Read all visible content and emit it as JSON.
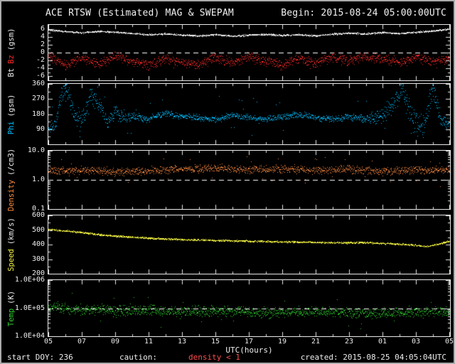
{
  "footer": {
    "start": "start DOY: 236",
    "caution_label": "caution:",
    "caution_value": "density < 1",
    "caution_color": "#ff4d4d",
    "created": "created: 2015-08-25 04:05:04UTC"
  },
  "chart_data": {
    "type": "scatter",
    "title": "ACE RTSW (Estimated) MAG & SWEPAM",
    "begin_label": "Begin: 2015-08-24 05:00:00UTC",
    "colors": {
      "axis": "#e9e9e9",
      "dashed": "#ffffff",
      "text": "#ededed",
      "background": "#000000"
    },
    "x_axis": {
      "label": "UTC(hours)",
      "hours": 24,
      "major_ticks": [
        {
          "label": "05",
          "hour": 0
        },
        {
          "label": "07",
          "hour": 2
        },
        {
          "label": "09",
          "hour": 4
        },
        {
          "label": "11",
          "hour": 6
        },
        {
          "label": "13",
          "hour": 8
        },
        {
          "label": "15",
          "hour": 10
        },
        {
          "label": "17",
          "hour": 12
        },
        {
          "label": "19",
          "hour": 14
        },
        {
          "label": "21",
          "hour": 16
        },
        {
          "label": "23",
          "hour": 18
        },
        {
          "label": "01",
          "hour": 20
        },
        {
          "label": "03",
          "hour": 22
        },
        {
          "label": "05",
          "hour": 24
        }
      ]
    },
    "panels": [
      {
        "name": "mag",
        "ylabel_parts": [
          {
            "text": "Bt",
            "color": "#f0f0f0"
          },
          {
            "text": "Bz",
            "color": "#ff2a2a"
          },
          {
            "text": "(gsm)",
            "color": "#f0f0f0"
          }
        ],
        "scale": "linear",
        "ylim": [
          -7,
          7
        ],
        "yticks": [
          {
            "label": "6",
            "v": 6
          },
          {
            "label": "4",
            "v": 4
          },
          {
            "label": "2",
            "v": 2
          },
          {
            "label": "0",
            "v": 0
          },
          {
            "label": "-2",
            "v": -2
          },
          {
            "label": "-4",
            "v": -4
          },
          {
            "label": "-6",
            "v": -6
          }
        ],
        "yminor": [
          5,
          3,
          1,
          -1,
          -3,
          -5
        ],
        "dashed": [
          0
        ],
        "series": [
          {
            "name": "Bt",
            "color": "#f0f0f0",
            "seed": 11,
            "jitter": 0.25,
            "t": [
              0,
              1,
              2,
              3,
              4,
              5,
              6,
              7,
              8,
              9,
              10,
              11,
              12,
              13,
              14,
              15,
              16,
              17,
              18,
              19,
              20,
              21,
              22,
              23,
              24
            ],
            "v": [
              5.8,
              5.4,
              5.1,
              5.4,
              5.2,
              4.9,
              4.6,
              4.8,
              4.5,
              4.3,
              4.6,
              4.2,
              4.5,
              4.7,
              4.4,
              4.6,
              4.3,
              4.7,
              5.0,
              4.8,
              5.1,
              4.9,
              5.2,
              5.5,
              6.0
            ]
          },
          {
            "name": "Bz",
            "color": "#ff2a2a",
            "seed": 23,
            "jitter": 1.4,
            "spike_p": 0.02,
            "spike_amp": 1.5,
            "t": [
              0,
              1,
              2,
              3,
              4,
              5,
              6,
              7,
              8,
              9,
              10,
              11,
              12,
              13,
              14,
              15,
              16,
              17,
              18,
              19,
              20,
              21,
              22,
              23,
              24
            ],
            "v": [
              -0.5,
              -3.2,
              -1.2,
              -2.8,
              -0.8,
              -2.2,
              -3.2,
              -1.5,
              -2.4,
              -3.0,
              -1.2,
              -2.6,
              -1.0,
              -2.2,
              -3.0,
              -1.4,
              -2.6,
              -1.2,
              -2.0,
              -0.8,
              -1.6,
              -2.4,
              -1.2,
              -2.2,
              -1.5
            ]
          }
        ]
      },
      {
        "name": "phi",
        "ylabel_parts": [
          {
            "text": "Phi",
            "color": "#00bfff"
          },
          {
            "text": "(gsm)",
            "color": "#f0f0f0"
          }
        ],
        "scale": "linear",
        "ylim": [
          0,
          360
        ],
        "clamp": true,
        "yticks": [
          {
            "label": "360",
            "v": 360
          },
          {
            "label": "270",
            "v": 270
          },
          {
            "label": "180",
            "v": 180
          },
          {
            "label": "90",
            "v": 90
          }
        ],
        "yminor": [
          45,
          135,
          225,
          315
        ],
        "dashed": [],
        "series": [
          {
            "name": "Phi",
            "color": "#00bfff",
            "seed": 37,
            "spike_p": 0.03,
            "spike_amp": 120,
            "t": [
              0,
              0.4,
              0.8,
              1.2,
              1.6,
              2,
              2.5,
              3,
              3.5,
              4,
              4.5,
              5,
              6,
              7,
              8,
              9,
              10,
              11,
              12,
              13,
              14,
              15,
              16,
              17,
              18,
              19,
              20,
              20.6,
              21.2,
              21.8,
              22.4,
              23,
              23.5,
              24
            ],
            "v": [
              95,
              110,
              320,
              300,
              160,
              130,
              290,
              240,
              130,
              200,
              150,
              170,
              155,
              185,
              170,
              160,
              150,
              175,
              160,
              150,
              165,
              180,
              160,
              150,
              165,
              155,
              170,
              240,
              320,
              150,
              90,
              330,
              140,
              120
            ],
            "jitter": [
              25,
              40,
              50,
              70,
              70,
              70,
              70,
              60,
              50,
              45,
              40,
              30,
              25,
              22,
              22,
              22,
              22,
              22,
              22,
              22,
              22,
              22,
              22,
              22,
              25,
              30,
              60,
              80,
              80,
              90,
              90,
              80,
              50,
              40
            ]
          }
        ]
      },
      {
        "name": "density",
        "ylabel_parts": [
          {
            "text": "Density",
            "color": "#ff8c42"
          },
          {
            "text": "(/cm3)",
            "color": "#f0f0f0"
          }
        ],
        "scale": "log",
        "ylim": [
          0.1,
          10
        ],
        "yticks": [
          {
            "label": "10.0",
            "v": 10
          },
          {
            "label": "1.0",
            "v": 1
          },
          {
            "label": "0.1",
            "v": 0.1
          }
        ],
        "yminor": [],
        "dashed": [
          1.0
        ],
        "series": [
          {
            "name": "Density",
            "color": "#ff8c42",
            "seed": 53,
            "jitter": 0.16,
            "spike_p": 0.025,
            "spike_amp": 0.5,
            "t": [
              0,
              2,
              4,
              6,
              8,
              10,
              12,
              14,
              16,
              18,
              20,
              22,
              24
            ],
            "v": [
              2.0,
              2.2,
              1.9,
              2.1,
              2.4,
              2.6,
              2.3,
              2.5,
              2.2,
              2.4,
              2.0,
              2.2,
              2.3
            ]
          }
        ]
      },
      {
        "name": "speed",
        "ylabel_parts": [
          {
            "text": "Speed",
            "color": "#f5f542"
          },
          {
            "text": "(km/s)",
            "color": "#f0f0f0"
          }
        ],
        "scale": "linear",
        "ylim": [
          200,
          600
        ],
        "yticks": [
          {
            "label": "600",
            "v": 600
          },
          {
            "label": "500",
            "v": 500
          },
          {
            "label": "400",
            "v": 400
          },
          {
            "label": "300",
            "v": 300
          },
          {
            "label": "200",
            "v": 200
          }
        ],
        "yminor": [
          250,
          350,
          450,
          550
        ],
        "dashed": [],
        "series": [
          {
            "name": "Speed",
            "color": "#f5f542",
            "seed": 67,
            "jitter": 7,
            "t": [
              0,
              1,
              2,
              3,
              4,
              5,
              6,
              7,
              8,
              10,
              12,
              14,
              16,
              18,
              19,
              20,
              21,
              22,
              22.6,
              23.2,
              24
            ],
            "v": [
              505,
              496,
              484,
              470,
              461,
              452,
              446,
              440,
              436,
              430,
              425,
              421,
              417,
              413,
              415,
              410,
              405,
              396,
              388,
              400,
              425
            ]
          }
        ]
      },
      {
        "name": "temp",
        "ylabel_parts": [
          {
            "text": "Temp",
            "color": "#2fd22f"
          },
          {
            "text": "(K)",
            "color": "#f0f0f0"
          }
        ],
        "scale": "log",
        "ylim": [
          10000,
          1000000
        ],
        "yticks": [
          {
            "label": "1.0E+06",
            "v": 1000000
          },
          {
            "label": "1.0E+05",
            "v": 100000
          },
          {
            "label": "1.0E+04",
            "v": 10000
          }
        ],
        "yminor": [],
        "dashed": [
          100000
        ],
        "series": [
          {
            "name": "Temp",
            "color": "#2fd22f",
            "seed": 83,
            "jitter": 0.22,
            "spike_p": 0.03,
            "spike_amp": 0.45,
            "t": [
              0,
              1,
              2,
              3,
              4,
              6,
              8,
              10,
              12,
              14,
              16,
              18,
              20,
              22,
              24
            ],
            "v": [
              115000,
              100000,
              88000,
              95000,
              82000,
              88000,
              78000,
              82000,
              75000,
              72000,
              76000,
              70000,
              66000,
              72000,
              78000
            ]
          }
        ]
      }
    ]
  }
}
